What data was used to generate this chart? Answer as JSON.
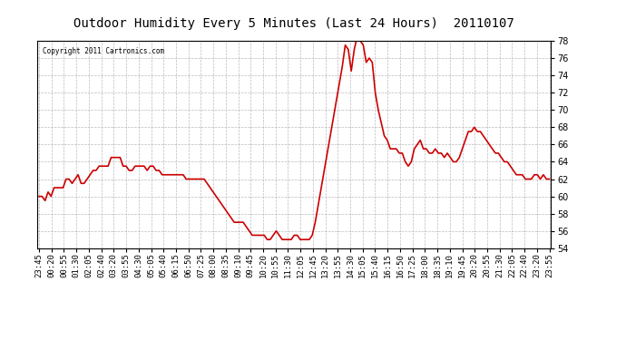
{
  "title": "Outdoor Humidity Every 5 Minutes (Last 24 Hours)  20110107",
  "copyright": "Copyright 2011 Cartronics.com",
  "line_color": "#cc0000",
  "bg_color": "#ffffff",
  "plot_bg_color": "#ffffff",
  "grid_color": "#aaaaaa",
  "ylim": [
    54.0,
    78.0
  ],
  "ytick_values": [
    54.0,
    56.0,
    58.0,
    60.0,
    62.0,
    64.0,
    66.0,
    68.0,
    70.0,
    72.0,
    74.0,
    76.0,
    78.0
  ],
  "x_labels": [
    "23:45",
    "00:20",
    "00:55",
    "01:30",
    "02:05",
    "02:40",
    "03:20",
    "03:55",
    "04:30",
    "05:05",
    "05:40",
    "06:15",
    "06:50",
    "07:25",
    "08:00",
    "08:35",
    "09:10",
    "09:45",
    "10:20",
    "10:55",
    "11:30",
    "12:05",
    "12:45",
    "13:20",
    "13:55",
    "14:30",
    "15:05",
    "15:40",
    "16:15",
    "16:50",
    "17:25",
    "18:00",
    "18:35",
    "19:10",
    "19:45",
    "20:20",
    "20:55",
    "21:30",
    "22:05",
    "22:40",
    "23:20",
    "23:55"
  ],
  "humidity_values": [
    60.0,
    60.0,
    59.5,
    60.5,
    60.0,
    61.0,
    61.0,
    61.0,
    61.0,
    62.0,
    62.0,
    61.5,
    62.0,
    62.5,
    61.5,
    61.5,
    62.0,
    62.5,
    63.0,
    63.0,
    63.5,
    63.5,
    63.5,
    63.5,
    64.5,
    64.5,
    64.5,
    64.5,
    63.5,
    63.5,
    63.0,
    63.0,
    63.5,
    63.5,
    63.5,
    63.5,
    63.0,
    63.5,
    63.5,
    63.0,
    63.0,
    62.5,
    62.5,
    62.5,
    62.5,
    62.5,
    62.5,
    62.5,
    62.5,
    62.0,
    62.0,
    62.0,
    62.0,
    62.0,
    62.0,
    62.0,
    61.5,
    61.0,
    60.5,
    60.0,
    59.5,
    59.0,
    58.5,
    58.0,
    57.5,
    57.0,
    57.0,
    57.0,
    57.0,
    56.5,
    56.0,
    55.5,
    55.5,
    55.5,
    55.5,
    55.5,
    55.0,
    55.0,
    55.5,
    56.0,
    55.5,
    55.0,
    55.0,
    55.0,
    55.0,
    55.5,
    55.5,
    55.0,
    55.0,
    55.0,
    55.0,
    55.5,
    57.0,
    59.0,
    61.0,
    63.0,
    65.0,
    67.0,
    69.0,
    71.0,
    73.0,
    75.0,
    77.5,
    77.0,
    74.5,
    77.0,
    78.5,
    78.0,
    77.5,
    75.5,
    76.0,
    75.5,
    72.0,
    70.0,
    68.5,
    67.0,
    66.5,
    65.5,
    65.5,
    65.5,
    65.0,
    65.0,
    64.0,
    63.5,
    64.0,
    65.5,
    66.0,
    66.5,
    65.5,
    65.5,
    65.0,
    65.0,
    65.5,
    65.0,
    65.0,
    64.5,
    65.0,
    64.5,
    64.0,
    64.0,
    64.5,
    65.5,
    66.5,
    67.5,
    67.5,
    68.0,
    67.5,
    67.5,
    67.0,
    66.5,
    66.0,
    65.5,
    65.0,
    65.0,
    64.5,
    64.0,
    64.0,
    63.5,
    63.0,
    62.5,
    62.5,
    62.5,
    62.0,
    62.0,
    62.0,
    62.5,
    62.5,
    62.0,
    62.5,
    62.0,
    62.0
  ]
}
